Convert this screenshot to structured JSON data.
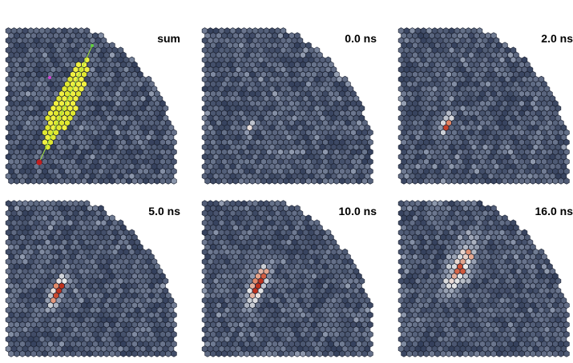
{
  "panels": [
    {
      "label": "sum"
    },
    {
      "label": "0.0 ns"
    },
    {
      "label": "2.0 ns"
    },
    {
      "label": "5.0 ns"
    },
    {
      "label": "10.0 ns"
    },
    {
      "label": "16.0 ns"
    }
  ]
}
